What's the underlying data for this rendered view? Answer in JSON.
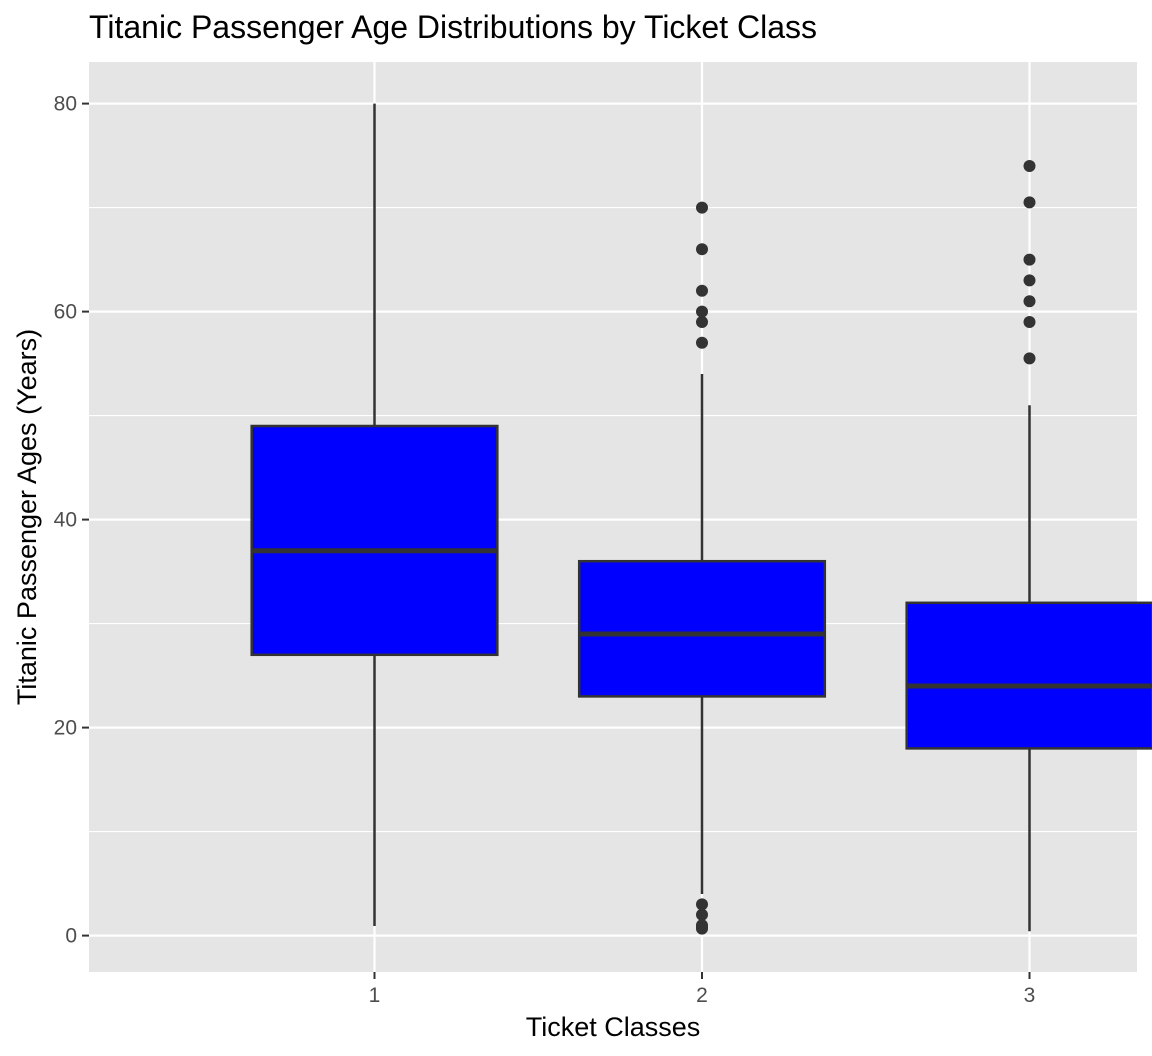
{
  "chart_data": {
    "type": "boxplot",
    "title": "Titanic Passenger Age Distributions by Ticket Class",
    "xlabel": "Ticket Classes",
    "ylabel": "Titanic Passenger Ages (Years)",
    "ylim": [
      -3.5,
      84
    ],
    "y_ticks": [
      0,
      20,
      40,
      60,
      80
    ],
    "y_tick_labels": [
      "0",
      "20",
      "40",
      "60",
      "80"
    ],
    "grid": true,
    "legend": "none",
    "colors": {
      "panel_background": "#e5e5e5",
      "grid": "#ffffff",
      "box_fill": "#0000ff",
      "box_stroke": "#333333",
      "outlier": "#333333"
    },
    "categories": [
      "1",
      "2",
      "3"
    ],
    "boxes": [
      {
        "category": "1",
        "whisker_low": 0.92,
        "q1": 27,
        "median": 37,
        "q3": 49,
        "whisker_high": 80,
        "outliers": []
      },
      {
        "category": "2",
        "whisker_low": 4,
        "q1": 23,
        "median": 29,
        "q3": 36,
        "whisker_high": 54,
        "outliers": [
          0.67,
          0.83,
          1,
          2,
          3,
          57,
          59,
          60,
          62,
          66,
          70
        ]
      },
      {
        "category": "3",
        "whisker_low": 0.42,
        "q1": 18,
        "median": 24,
        "q3": 32,
        "whisker_high": 51,
        "outliers": [
          55.5,
          59,
          61,
          63,
          65,
          70.5,
          74
        ]
      }
    ]
  }
}
